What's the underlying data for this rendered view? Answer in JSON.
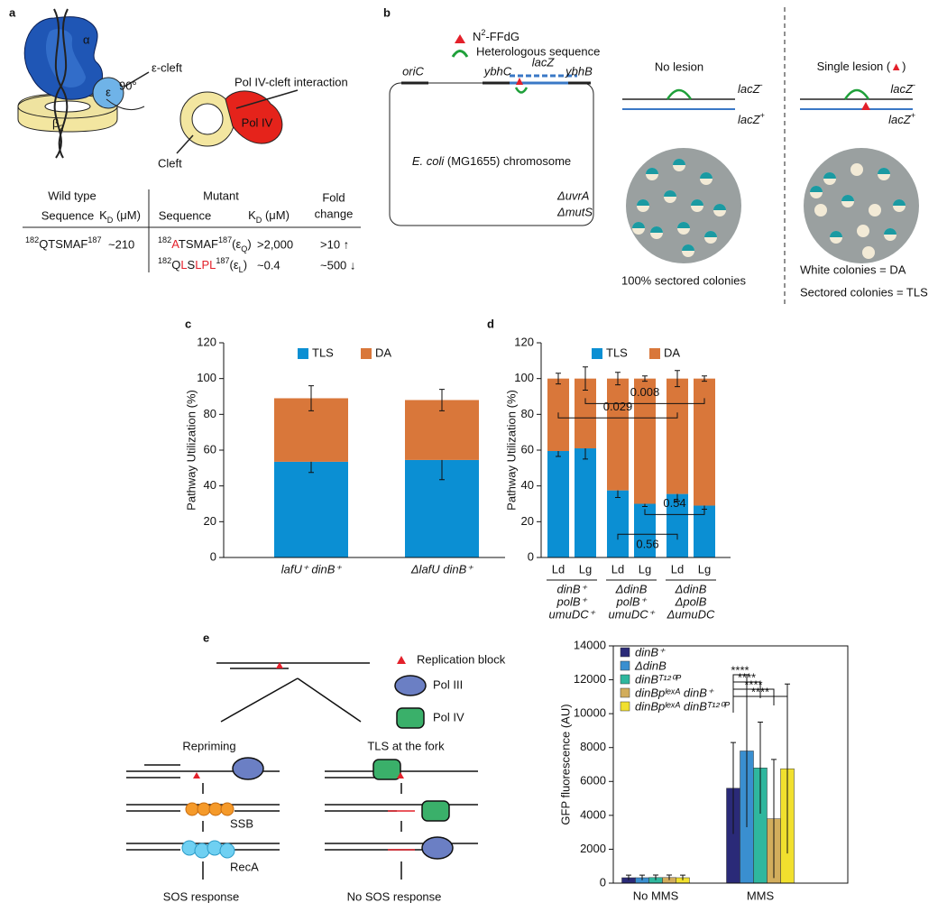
{
  "panel_labels": [
    "a",
    "b",
    "c",
    "d",
    "e"
  ],
  "panel_a": {
    "alpha": "α",
    "epsilon": "ε",
    "beta": [
      {
        "t": "β"
      },
      {
        "t": "2",
        "sub": true
      }
    ],
    "eps_cleft": "ε-cleft",
    "rotation": "90°",
    "interaction": "Pol IV-cleft interaction",
    "pol_iv": "Pol IV",
    "cleft": "Cleft",
    "table": {
      "wild_type": "Wild type",
      "mutant": "Mutant",
      "sequence": "Sequence",
      "kd": [
        {
          "t": "K"
        },
        {
          "t": "D",
          "sub": true
        },
        {
          "t": " (μM)"
        }
      ],
      "fold_change": [
        "Fold",
        "change"
      ],
      "wt_row": {
        "seq": [
          {
            "t": "182",
            "sup": true
          },
          {
            "t": "QTSMAF"
          },
          {
            "t": "187",
            "sup": true
          }
        ],
        "kd": "~210"
      },
      "mutant_rows": [
        {
          "seq": [
            {
              "t": "182",
              "sup": true
            },
            {
              "t": "A",
              "color": "#e3202a"
            },
            {
              "t": "TSMAF"
            },
            {
              "t": "187",
              "sup": true
            },
            {
              "t": "(ε"
            },
            {
              "t": "Q",
              "sub": true
            },
            {
              "t": ")"
            }
          ],
          "kd": ">2,000",
          "fold": ">10 ↑"
        },
        {
          "seq": [
            {
              "t": "182",
              "sup": true
            },
            {
              "t": "Q"
            },
            {
              "t": "L",
              "color": "#e3202a"
            },
            {
              "t": "S"
            },
            {
              "t": "LPL",
              "color": "#e3202a"
            },
            {
              "t": "187",
              "sup": true
            },
            {
              "t": "(ε"
            },
            {
              "t": "L",
              "sub": true
            },
            {
              "t": ")"
            }
          ],
          "kd": "~0.4",
          "fold": "~500 ↓"
        }
      ]
    }
  },
  "panel_b": {
    "lesion_legend": [
      {
        "t": "N"
      },
      {
        "t": "2",
        "sup": true
      },
      {
        "t": "-FFdG"
      }
    ],
    "hetero_legend": "Heterologous sequence",
    "oriC": "oriC",
    "ybhC": "ybhC",
    "lacZ": "lacZ",
    "ybhB": "ybhB",
    "chromosome": [
      {
        "t": "E. coli",
        "i": true
      },
      {
        "t": " (MG1655) chromosome"
      }
    ],
    "genotype": [
      "ΔuvrA",
      "ΔmutS"
    ],
    "no_lesion": "No lesion",
    "single_lesion": [
      {
        "t": "Single lesion ("
      },
      {
        "t": "▲",
        "color": "#e3202a"
      },
      {
        "t": ")"
      }
    ],
    "lacz_minus": [
      {
        "t": "lacZ",
        "i": true
      },
      {
        "t": "-",
        "sup": true
      }
    ],
    "lacz_plus": [
      {
        "t": "lacZ",
        "i": true
      },
      {
        "t": "+",
        "sup": true
      }
    ],
    "left_caption": "100% sectored colonies",
    "right_caption": [
      "White colonies = DA",
      "Sectored colonies = TLS"
    ]
  },
  "panel_e_diagram": {
    "replication_block": "Replication block",
    "pol_iii": "Pol III",
    "pol_iv": "Pol IV",
    "repriming": "Repriming",
    "tls_fork": "TLS at the fork",
    "ssb": "SSB",
    "reca": "RecA",
    "sos": "SOS response",
    "no_sos": "No SOS response"
  },
  "chart_data": [
    {
      "type": "stacked_bar",
      "ylabel": "Pathway Utilization (%)",
      "categories": [
        "lafU⁺ dinB⁺",
        "ΔlafU dinB⁺"
      ],
      "series": [
        {
          "name": "TLS",
          "color": "#0b8fd3",
          "values": [
            53.5,
            54.5
          ],
          "errors": [
            6,
            11
          ]
        },
        {
          "name": "DA",
          "color": "#d9773a",
          "values": [
            35.5,
            33.5
          ],
          "errors": [
            7,
            6
          ]
        }
      ],
      "ylim": [
        0,
        120
      ],
      "yticks": [
        0,
        20,
        40,
        60,
        80,
        100,
        120
      ]
    },
    {
      "type": "stacked_bar",
      "ylabel": "Pathway Utilization (%)",
      "categories": [
        "Ld",
        "Lg",
        "Ld",
        "Lg",
        "Ld",
        "Lg"
      ],
      "groups": [
        [
          "dinB⁺",
          "polB⁺",
          "umuDC⁺"
        ],
        [
          "ΔdinB",
          "polB⁺",
          "umuDC⁺"
        ],
        [
          "ΔdinB",
          "ΔpolB",
          "ΔumuDC"
        ]
      ],
      "series": [
        {
          "name": "TLS",
          "color": "#0b8fd3",
          "values": [
            59.5,
            61,
            37.5,
            30,
            35.5,
            29
          ],
          "errors": [
            3,
            6,
            4,
            1.5,
            4,
            2
          ]
        },
        {
          "name": "DA",
          "color": "#d9773a",
          "values": [
            40.5,
            39,
            62.5,
            70,
            64.5,
            71
          ],
          "errors": [
            3,
            6.5,
            3.5,
            1.5,
            4.5,
            1.5
          ]
        }
      ],
      "ylim": [
        0,
        120
      ],
      "yticks": [
        0,
        20,
        40,
        60,
        80,
        100,
        120
      ],
      "annotations": [
        {
          "text": "0.029",
          "between": [
            0,
            4
          ]
        },
        {
          "text": "0.008",
          "between": [
            1,
            5
          ]
        },
        {
          "text": "0.54",
          "between": [
            3,
            5
          ]
        },
        {
          "text": "0.56",
          "between": [
            2,
            4
          ]
        }
      ]
    },
    {
      "type": "grouped_bar",
      "ylabel": "GFP fluorescence (AU)",
      "categories": [
        "No MMS",
        "MMS"
      ],
      "series": [
        {
          "name": "dinB⁺",
          "color": "#2a2a78",
          "values": [
            320,
            5600
          ],
          "errors": [
            150,
            2700
          ]
        },
        {
          "name": "ΔdinB",
          "color": "#3a8fd0",
          "values": [
            320,
            7800
          ],
          "errors": [
            150,
            4500
          ]
        },
        {
          "name": "dinBᵀ¹²⁰ᴾ",
          "color": "#2fb79e",
          "values": [
            330,
            6800
          ],
          "errors": [
            150,
            2700
          ]
        },
        {
          "name": "dinBpˡᵉˣᴬ dinB⁺",
          "color": "#d2ad5c",
          "values": [
            330,
            3800
          ],
          "errors": [
            150,
            3500
          ]
        },
        {
          "name": "dinBpˡᵉˣᴬ dinBᵀ¹²⁰ᴾ",
          "color": "#f1e02e",
          "values": [
            320,
            6750
          ],
          "errors": [
            150,
            5000
          ]
        }
      ],
      "ylim": [
        0,
        14000
      ],
      "yticks": [
        0,
        2000,
        4000,
        6000,
        8000,
        10000,
        12000,
        14000
      ],
      "significance": [
        "****",
        "****",
        "****",
        "****"
      ],
      "legend": "top-left"
    }
  ]
}
